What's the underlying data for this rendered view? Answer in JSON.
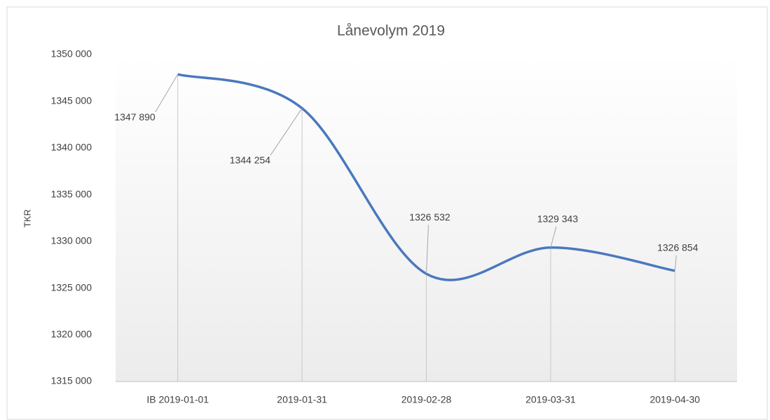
{
  "chart_data": {
    "type": "line",
    "title": "Lånevolym  2019",
    "y_label": "TKR",
    "categories": [
      "IB 2019-01-01",
      "2019-01-31",
      "2019-02-28",
      "2019-03-31",
      "2019-04-30"
    ],
    "series": [
      {
        "name": "Lånevolym",
        "color": "#4a78bd",
        "smooth": true,
        "values": [
          1347890,
          1344254,
          1326532,
          1329343,
          1326854
        ],
        "value_labels": [
          "1347 890",
          "1344 254",
          "1326 532",
          "1329 343",
          "1326 854"
        ]
      }
    ],
    "ylim": [
      1315000,
      1350000
    ],
    "yticks": [
      {
        "value": 1315000,
        "label": "1315 000"
      },
      {
        "value": 1320000,
        "label": "1320 000"
      },
      {
        "value": 1325000,
        "label": "1325 000"
      },
      {
        "value": 1330000,
        "label": "1330 000"
      },
      {
        "value": 1335000,
        "label": "1335 000"
      },
      {
        "value": 1340000,
        "label": "1340 000"
      },
      {
        "value": 1345000,
        "label": "1345 000"
      },
      {
        "value": 1350000,
        "label": "1350 000"
      }
    ],
    "grid": false,
    "drop_lines": true
  }
}
